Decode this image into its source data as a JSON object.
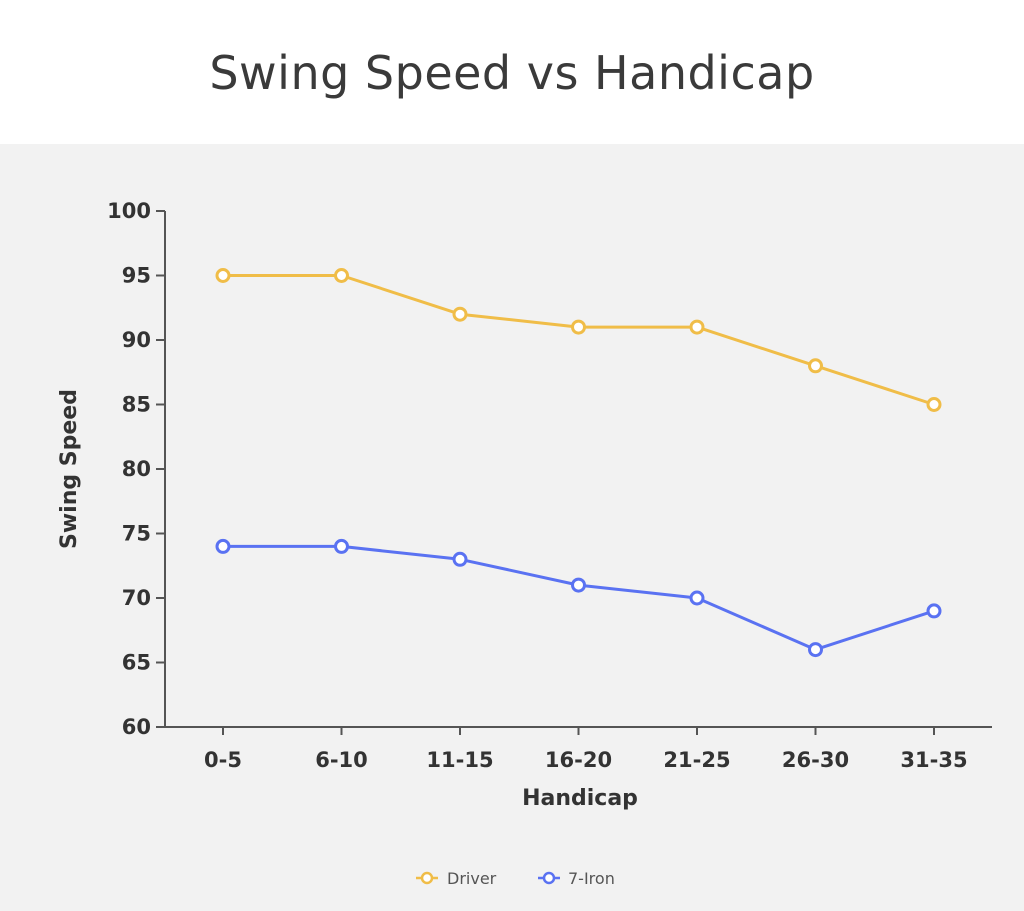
{
  "chart_data": {
    "type": "line",
    "title": "Swing Speed vs Handicap",
    "xlabel": "Handicap",
    "ylabel": "Swing Speed",
    "categories": [
      "0-5",
      "6-10",
      "11-15",
      "16-20",
      "21-25",
      "26-30",
      "31-35"
    ],
    "ylim": [
      60,
      100
    ],
    "yticks": [
      60,
      65,
      70,
      75,
      80,
      85,
      90,
      95,
      100
    ],
    "grid": false,
    "legend_position": "bottom-center",
    "series": [
      {
        "name": "Driver",
        "color": "#f0bd48",
        "values": [
          95,
          95,
          92,
          91,
          91,
          88,
          85
        ]
      },
      {
        "name": "7-Iron",
        "color": "#5a72f2",
        "values": [
          74,
          74,
          73,
          71,
          70,
          66,
          69
        ]
      }
    ]
  }
}
